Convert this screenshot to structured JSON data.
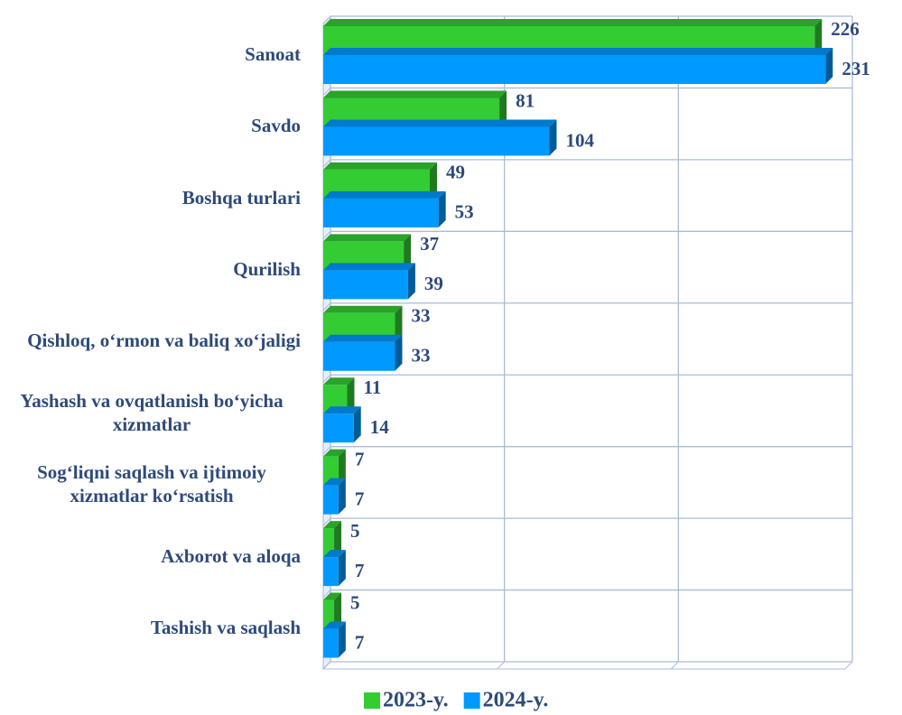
{
  "chart_data": {
    "type": "bar",
    "orientation": "horizontal",
    "categories": [
      "Sanoat",
      "Savdo",
      "Boshqa turlari",
      "Qurilish",
      "Qishloq, o‘rmon va baliq xo‘jaligi",
      "Yashash va ovqatlanish bo‘yicha xizmatlar",
      "Sog‘liqni saqlash va ijtimoiy xizmatlar ko‘rsatish",
      "Axborot va aloqa",
      "Tashish va saqlash"
    ],
    "series": [
      {
        "name": "2023-y.",
        "color": "#33cc33",
        "values": [
          226,
          81,
          49,
          37,
          33,
          11,
          7,
          5,
          5
        ]
      },
      {
        "name": "2024-y.",
        "color": "#0099ff",
        "values": [
          231,
          104,
          53,
          39,
          33,
          14,
          7,
          7,
          7
        ]
      }
    ],
    "xlim": [
      0,
      240
    ],
    "xticks": [
      0,
      80,
      160,
      240
    ],
    "grid": true,
    "legend": "bottom"
  }
}
